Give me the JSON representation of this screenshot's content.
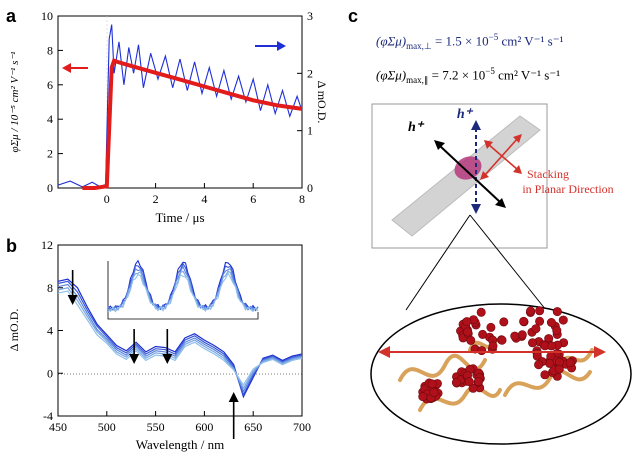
{
  "panels": {
    "a": {
      "label": "a"
    },
    "b": {
      "label": "b"
    },
    "c": {
      "label": "c"
    }
  },
  "colors": {
    "transient": "#1f2fd6",
    "fit": "#e21b1b",
    "navy": "#1d2a7a",
    "stacking": "#d3322b",
    "molecule_red": "#b0101a",
    "molecule_gold": "#d8a25a",
    "b_lines": [
      "#1a2ed0",
      "#3a58d8",
      "#5b86de",
      "#7aa6e4",
      "#8fc0ea"
    ]
  },
  "panel_c": {
    "eq_perp": {
      "main": "(φΣμ)",
      "sub": "max,⊥",
      "rest": " = 1.5 × 10",
      "exp": "−5",
      "unit": " cm² V⁻¹ s⁻¹"
    },
    "eq_par": {
      "main": "(φΣμ)",
      "sub": "max,∥",
      "rest": " = 7.2 × 10",
      "exp": "−5",
      "unit": " cm² V⁻¹ s⁻¹"
    },
    "hplus_navy": "h⁺",
    "hplus_black": "h⁺",
    "stacking_line1": "Stacking",
    "stacking_line2": "in Planar Direction"
  },
  "chart_data": [
    {
      "panel": "a",
      "type": "line",
      "xlabel": "Time / μs",
      "ylabel_left": "φΣμ / 10⁻⁵ cm² V⁻¹ s⁻¹",
      "ylabel_right": "Δ mO.D.",
      "xlim": [
        -2,
        8
      ],
      "ylim_left": [
        0,
        10
      ],
      "ylim_right": [
        0,
        3
      ],
      "x_ticks": [
        0,
        2,
        4,
        6,
        8
      ],
      "y_ticks_left": [
        0,
        2,
        4,
        6,
        8,
        10
      ],
      "y_ticks_right": [
        0,
        1,
        2,
        3
      ],
      "series": [
        {
          "role": "transient (right axis)",
          "x": [
            -2.0,
            -1.5,
            -1.0,
            -0.6,
            -0.3,
            -0.05,
            0.1,
            0.2,
            0.3,
            0.5,
            0.7,
            0.9,
            1.1,
            1.3,
            1.5,
            1.8,
            2.1,
            2.4,
            2.7,
            3.0,
            3.3,
            3.6,
            3.9,
            4.2,
            4.5,
            4.8,
            5.1,
            5.4,
            5.7,
            6.0,
            6.3,
            6.6,
            6.9,
            7.2,
            7.5,
            7.8,
            8.0
          ],
          "y": [
            0.05,
            0.12,
            0.02,
            0.1,
            0.03,
            0.06,
            2.6,
            2.85,
            2.0,
            2.55,
            1.8,
            2.45,
            2.0,
            2.5,
            1.75,
            2.35,
            1.9,
            2.3,
            1.75,
            2.25,
            1.7,
            2.2,
            1.65,
            2.1,
            1.6,
            2.05,
            1.55,
            1.95,
            1.5,
            1.9,
            1.35,
            1.8,
            1.3,
            1.7,
            1.25,
            1.6,
            1.35
          ]
        },
        {
          "role": "fit (left axis)",
          "x": [
            -1.0,
            -0.5,
            0.0,
            0.1,
            0.2,
            0.3,
            0.5,
            1.0,
            2.0,
            3.0,
            4.0,
            5.0,
            6.0,
            7.0,
            8.0
          ],
          "y": [
            0.0,
            0.0,
            0.1,
            3.5,
            7.0,
            7.4,
            7.3,
            7.1,
            6.7,
            6.3,
            5.9,
            5.5,
            5.1,
            4.8,
            4.6
          ]
        }
      ],
      "arrows": [
        {
          "direction": "left",
          "color": "red"
        },
        {
          "direction": "right",
          "color": "blue"
        }
      ]
    },
    {
      "panel": "b",
      "type": "line",
      "xlabel": "Wavelength / nm",
      "ylabel": "Δ mO.D.",
      "xlim": [
        450,
        700
      ],
      "ylim": [
        -4,
        12
      ],
      "x_ticks": [
        450,
        500,
        550,
        600,
        650,
        700
      ],
      "y_ticks": [
        -4,
        0,
        4,
        8,
        12
      ],
      "x": [
        450,
        460,
        470,
        480,
        490,
        500,
        510,
        520,
        530,
        540,
        550,
        560,
        570,
        580,
        590,
        600,
        610,
        620,
        630,
        640,
        650,
        660,
        670,
        680,
        690,
        700
      ],
      "series": [
        {
          "values": [
            8.6,
            8.8,
            8.0,
            6.2,
            4.6,
            3.6,
            2.6,
            2.1,
            2.9,
            2.0,
            2.5,
            2.4,
            2.0,
            3.3,
            3.7,
            3.1,
            2.6,
            2.0,
            0.8,
            -2.2,
            -0.4,
            1.4,
            1.7,
            1.2,
            1.6,
            1.8
          ]
        },
        {
          "values": [
            8.4,
            8.6,
            7.6,
            5.9,
            4.4,
            3.4,
            2.4,
            1.9,
            2.7,
            1.8,
            2.3,
            2.2,
            1.8,
            3.1,
            3.5,
            2.9,
            2.4,
            1.8,
            0.6,
            -2.0,
            -0.2,
            1.3,
            1.6,
            1.1,
            1.5,
            1.7
          ]
        },
        {
          "values": [
            8.1,
            8.3,
            7.2,
            5.6,
            4.1,
            3.2,
            2.2,
            1.7,
            2.5,
            1.6,
            2.1,
            2.0,
            1.6,
            2.9,
            3.3,
            2.7,
            2.2,
            1.6,
            0.5,
            -1.7,
            0.0,
            1.2,
            1.5,
            1.0,
            1.4,
            1.6
          ]
        },
        {
          "values": [
            7.8,
            8.0,
            6.8,
            5.3,
            3.9,
            3.0,
            2.0,
            1.5,
            2.3,
            1.4,
            1.9,
            1.8,
            1.4,
            2.7,
            3.1,
            2.5,
            2.0,
            1.4,
            0.4,
            -1.4,
            0.2,
            1.1,
            1.4,
            0.9,
            1.3,
            1.5
          ]
        },
        {
          "values": [
            7.5,
            7.7,
            6.4,
            5.0,
            3.6,
            2.8,
            1.8,
            1.3,
            2.1,
            1.2,
            1.7,
            1.6,
            1.2,
            2.5,
            2.9,
            2.3,
            1.8,
            1.2,
            0.3,
            -1.1,
            0.4,
            1.0,
            1.3,
            0.8,
            1.2,
            1.4
          ]
        }
      ],
      "inset_peaks": [
        0.2,
        0.5,
        0.8
      ],
      "arrows": [
        {
          "at_nm": 465,
          "direction": "down"
        },
        {
          "at_nm": 528,
          "direction": "down"
        },
        {
          "at_nm": 562,
          "direction": "down"
        },
        {
          "at_nm": 630,
          "direction": "up"
        }
      ]
    }
  ]
}
